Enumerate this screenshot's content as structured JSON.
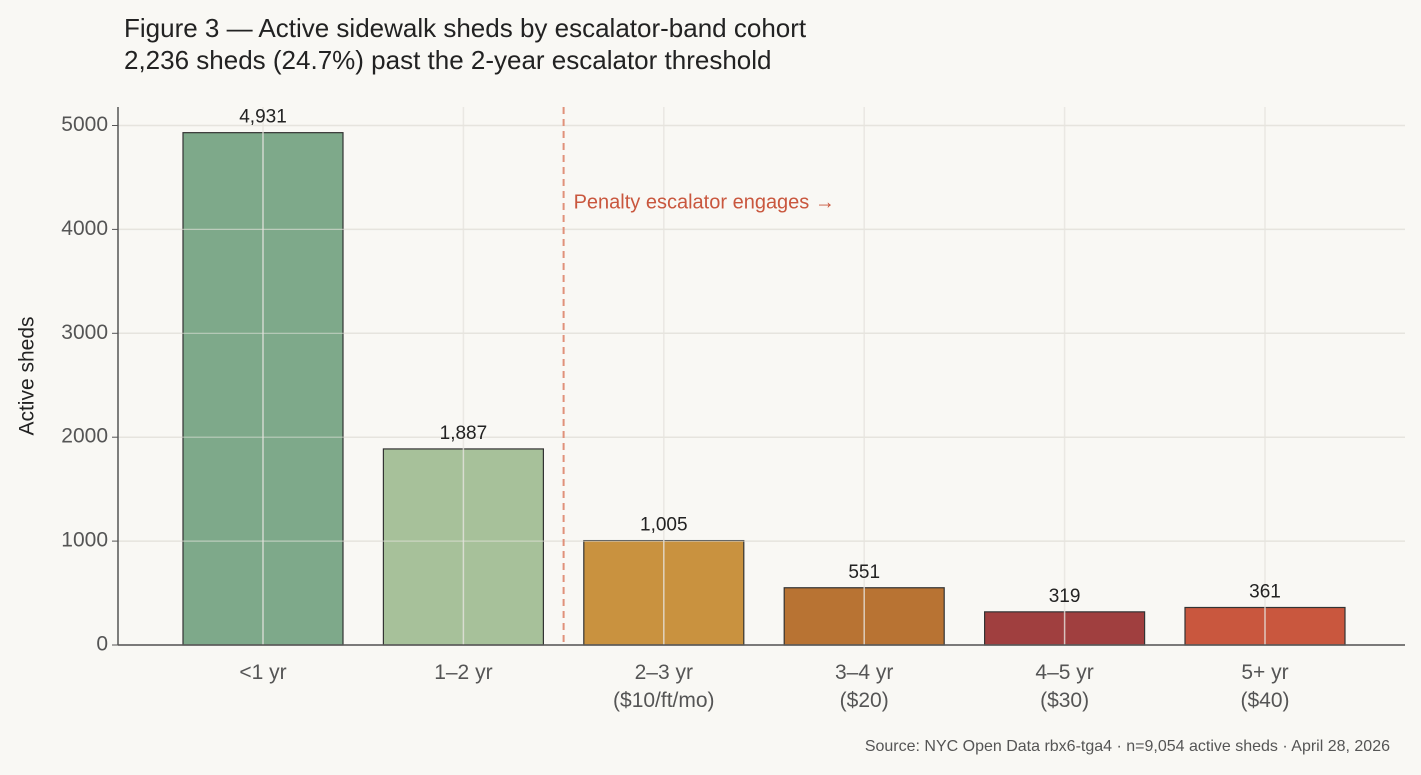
{
  "chart_data": {
    "type": "bar",
    "title": "Figure 3 — Active sidewalk sheds by escalator-band cohort",
    "subtitle": "2,236 sheds (24.7%) past the 2-year escalator threshold",
    "y_label": "Active sheds",
    "annotation": "Penalty escalator engages →",
    "source": "Source: NYC Open Data rbx6-tga4 · n=9,054 active sheds · April 28, 2026",
    "categories": [
      "<1 yr",
      "1–2 yr",
      "2–3 yr\n($10/ft/mo)",
      "3–4 yr\n($20)",
      "4–5 yr\n($30)",
      "5+ yr\n($40)"
    ],
    "values": [
      4931,
      1887,
      1005,
      551,
      319,
      361
    ],
    "value_labels": [
      "4,931",
      "1,887",
      "1,005",
      "551",
      "319",
      "361"
    ],
    "colors": [
      "#7ea98a",
      "#a7c19a",
      "#c9923f",
      "#b87333",
      "#a03f3f",
      "#c9573e"
    ],
    "ylim": [
      0,
      5178
    ],
    "yticks": [
      0,
      1000,
      2000,
      3000,
      4000,
      5000
    ],
    "grid": true
  }
}
